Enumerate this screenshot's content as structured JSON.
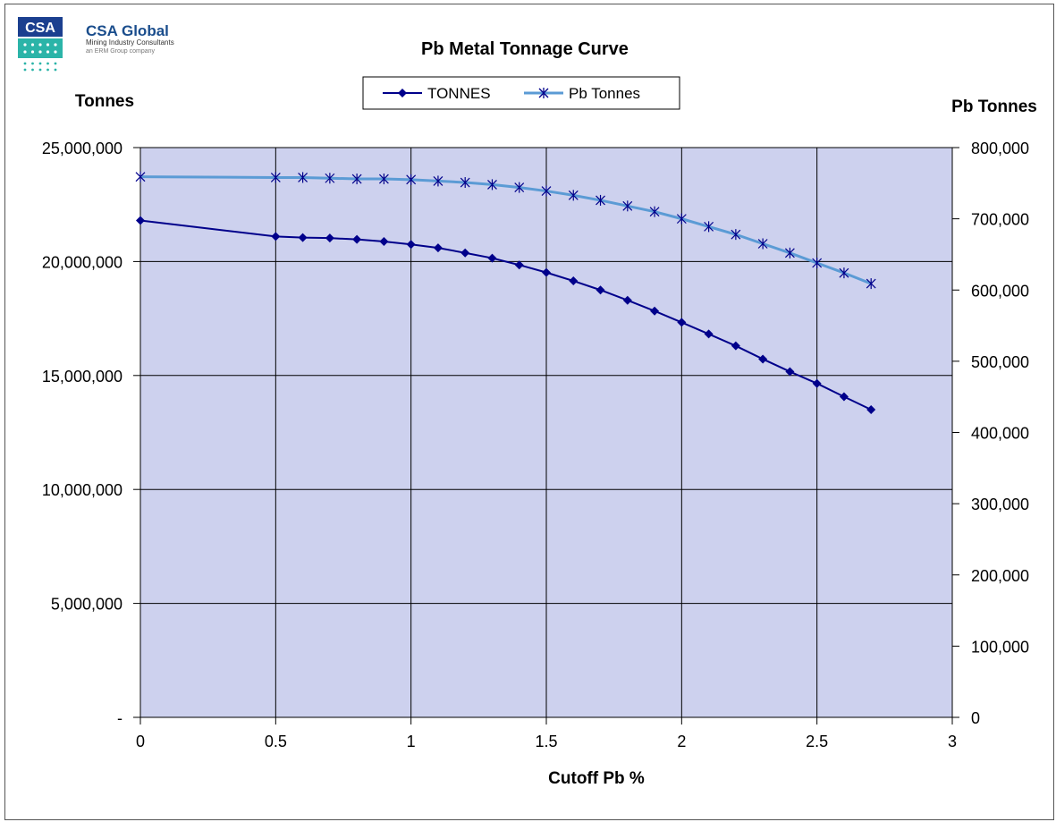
{
  "logo": {
    "mark_text": "CSA",
    "brand": "CSA Global",
    "tagline": "Mining Industry Consultants",
    "subline": "an ERM Group company",
    "colors": {
      "mark": "#1b3f8f",
      "dots": "#2bb4a8"
    }
  },
  "chart_data": {
    "type": "line",
    "title": "Pb Metal Tonnage Curve",
    "xlabel": "Cutoff Pb %",
    "ylabel_left": "Tonnes",
    "ylabel_right": "Pb Tonnes",
    "xlim": [
      0,
      3
    ],
    "ylim_left": [
      0,
      25000000
    ],
    "ylim_right": [
      0,
      800000
    ],
    "x_ticks": [
      "0",
      "0.5",
      "1",
      "1.5",
      "2",
      "2.5",
      "3"
    ],
    "y_left_ticks": [
      "-",
      "5,000,000",
      "10,000,000",
      "15,000,000",
      "20,000,000",
      "25,000,000"
    ],
    "y_right_ticks": [
      "0",
      "100,000",
      "200,000",
      "300,000",
      "400,000",
      "500,000",
      "600,000",
      "700,000",
      "800,000"
    ],
    "grid": true,
    "legend_position": "top-center",
    "plot_background": "#cdd1ee",
    "series": [
      {
        "name": "TONNES",
        "axis": "left",
        "color": "#00008b",
        "marker": "diamond",
        "x": [
          0,
          0.5,
          0.6,
          0.7,
          0.8,
          0.9,
          1.0,
          1.1,
          1.2,
          1.3,
          1.4,
          1.5,
          1.6,
          1.7,
          1.8,
          1.9,
          2.0,
          2.1,
          2.2,
          2.3,
          2.4,
          2.5,
          2.6,
          2.7
        ],
        "values": [
          21800000,
          21100000,
          21050000,
          21030000,
          20970000,
          20880000,
          20750000,
          20600000,
          20380000,
          20150000,
          19850000,
          19520000,
          19150000,
          18750000,
          18300000,
          17830000,
          17330000,
          16820000,
          16300000,
          15720000,
          15170000,
          14650000,
          14070000,
          13500000
        ]
      },
      {
        "name": "Pb Tonnes",
        "axis": "right",
        "color": "#5b9bd5",
        "marker": "star",
        "x": [
          0,
          0.5,
          0.6,
          0.7,
          0.8,
          0.9,
          1.0,
          1.1,
          1.2,
          1.3,
          1.4,
          1.5,
          1.6,
          1.7,
          1.8,
          1.9,
          2.0,
          2.1,
          2.2,
          2.3,
          2.4,
          2.5,
          2.6,
          2.7
        ],
        "values": [
          759000,
          758000,
          758000,
          757000,
          756000,
          756000,
          755000,
          753000,
          751000,
          748000,
          744000,
          739000,
          733000,
          726000,
          718000,
          710000,
          700000,
          689000,
          678000,
          665000,
          652000,
          638000,
          624000,
          609000
        ]
      }
    ]
  }
}
